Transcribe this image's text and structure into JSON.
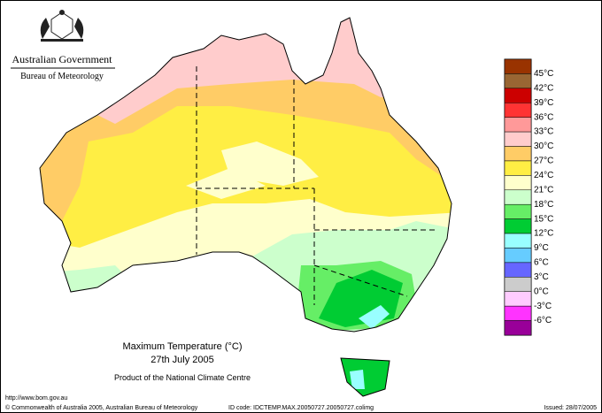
{
  "header": {
    "government": "Australian Government",
    "bureau": "Bureau of Meteorology"
  },
  "legend": {
    "labels": [
      "45°C",
      "42°C",
      "39°C",
      "36°C",
      "33°C",
      "30°C",
      "27°C",
      "24°C",
      "21°C",
      "18°C",
      "15°C",
      "12°C",
      "9°C",
      "6°C",
      "3°C",
      "0°C",
      "-3°C",
      "-6°C"
    ],
    "colors": [
      "#993300",
      "#996633",
      "#cc0000",
      "#ff3333",
      "#ff9999",
      "#ffcccc",
      "#ffcc66",
      "#ffee44",
      "#ffffcc",
      "#ccffcc",
      "#66ee66",
      "#00cc33",
      "#99ffff",
      "#66ccff",
      "#6666ff",
      "#cccccc",
      "#ffccff",
      "#ff33ff",
      "#990099"
    ]
  },
  "caption": {
    "title": "Maximum Temperature (°C)",
    "date": "27th July 2005",
    "product": "Product of the National Climate Centre"
  },
  "footer": {
    "url": "http://www.bom.gov.au",
    "copyright": "© Commonwealth of Australia 2005, Australian Bureau of Meteorology",
    "id_code": "ID code: IDCTEMP.MAX.20050727.20050727.colimg",
    "issued": "Issued: 28/07/2005"
  }
}
